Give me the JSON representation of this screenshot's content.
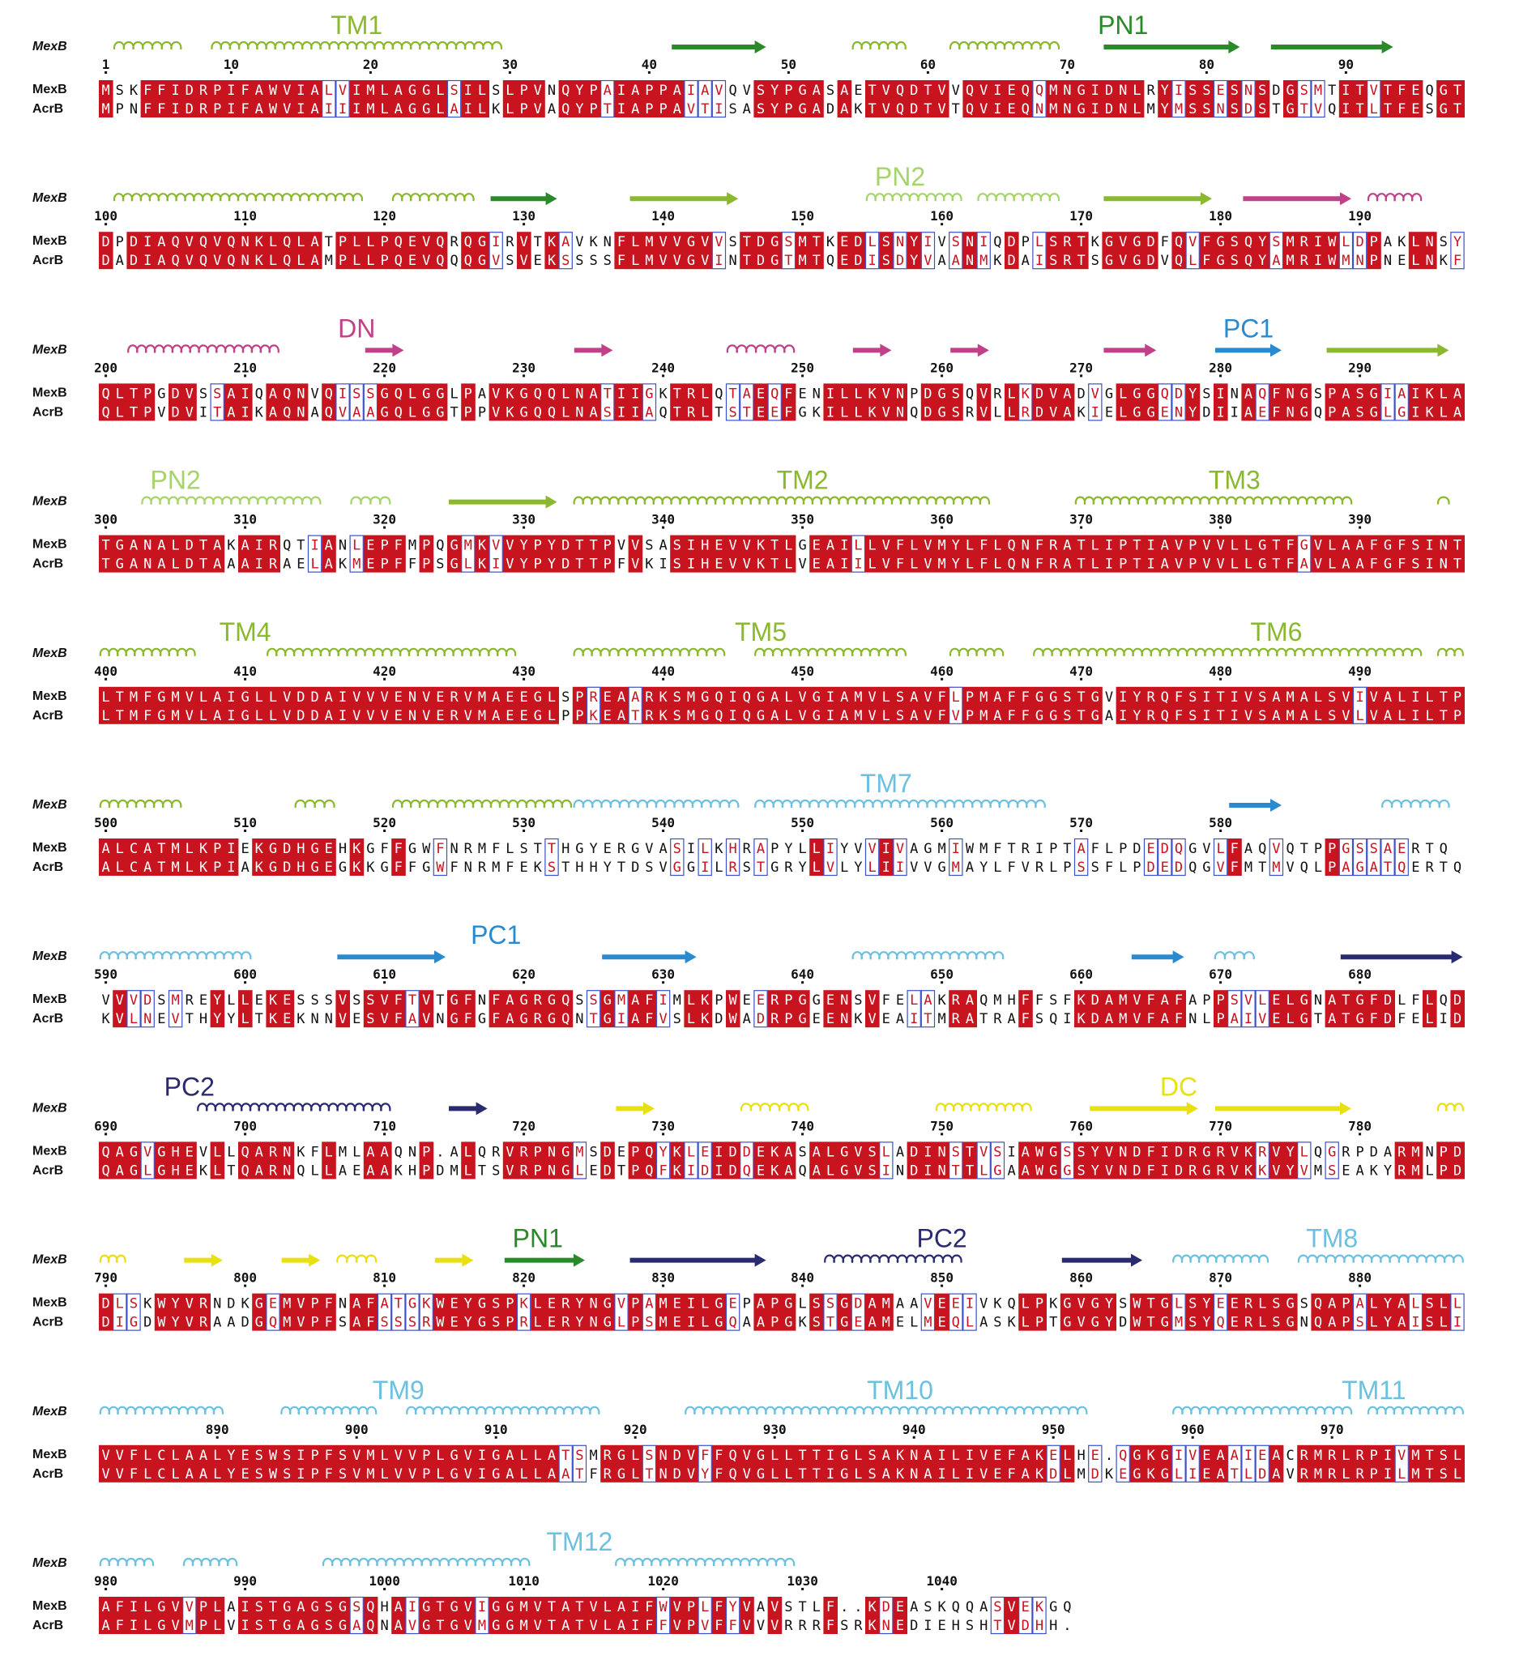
{
  "seq_names": {
    "top": "MexB",
    "bottom": "AcrB"
  },
  "colors": {
    "identical_bg": "#c8141e",
    "identical_fg": "#ffffff",
    "similar_fg": "#c8141e",
    "box": "#3c50c8",
    "text": "#111111",
    "tm_green": "#8ab82e",
    "pn1_green": "#2a8a2a",
    "pn2_light": "#a6d46a",
    "dn_pink": "#c0408a",
    "pc1_blue": "#2a8ad0",
    "tm_lightblue": "#6cc0e0",
    "pc2_navy": "#2a2a70",
    "dc_yellow": "#e8e010"
  },
  "blocks": [
    {
      "start": 1,
      "top": "MSKFFIDRPIFAWVIALVIMLAGGLSILSLPVNQYPAIAPPAIAVQVSYPGASAETVQDTVVQVIEQQMNGIDNLRYISSESNSDGSMTITVTFEQGT",
      "bottom": "MPNFFIDRPIFAWVIAIIIMLAGGLAILKLPVAQYPTIAPPAVTISASYPGADAKTVQDTVTQVIEQNMNGIDNLMYMSSNSDSTGTVQITLTFESGT",
      "ticks": [
        1,
        10,
        20,
        30,
        40,
        50,
        60,
        70,
        80,
        90
      ],
      "labels": [
        {
          "text": "TM1",
          "pos": 19,
          "color": "tm_green"
        },
        {
          "text": "PN1",
          "pos": 74,
          "color": "pn1_green"
        }
      ],
      "ss": [
        {
          "type": "helix",
          "from": 2,
          "to": 6,
          "color": "tm_green"
        },
        {
          "type": "helix",
          "from": 9,
          "to": 29,
          "color": "tm_green"
        },
        {
          "type": "strand",
          "from": 42,
          "to": 48,
          "color": "pn1_green"
        },
        {
          "type": "helix",
          "from": 55,
          "to": 58,
          "color": "tm_green"
        },
        {
          "type": "helix",
          "from": 62,
          "to": 69,
          "color": "tm_green"
        },
        {
          "type": "strand",
          "from": 73,
          "to": 82,
          "color": "pn1_green"
        },
        {
          "type": "strand",
          "from": 85,
          "to": 93,
          "color": "pn1_green"
        }
      ]
    },
    {
      "start": 100,
      "top": "DPDIAQVQVQNKLQLATPLLPQEVQRQGIRVTKAVKNFLMVVGVVSTDGSMTKEDLSNYIVSNIQDPLSRTKGVGDFQVFGSQYSMRIWLDPAKLNSY",
      "bottom": "DADIAQVQVQNKLQLAMPLLPQEVQQQGVSVEKSSSSFLMVVGVINTDGTMTQEDISDYVAANMKDAISRTSGVGDVQLFGSQYAMRIWMNPNELNKF",
      "ticks": [
        100,
        110,
        120,
        130,
        140,
        150,
        160,
        170,
        180,
        190
      ],
      "labels": [
        {
          "text": "PN2",
          "pos": 58,
          "color": "pn2_light"
        }
      ],
      "ss": [
        {
          "type": "helix",
          "from": 2,
          "to": 19,
          "color": "tm_green"
        },
        {
          "type": "helix",
          "from": 22,
          "to": 27,
          "color": "tm_green"
        },
        {
          "type": "strand",
          "from": 29,
          "to": 33,
          "color": "pn1_green"
        },
        {
          "type": "strand",
          "from": 39,
          "to": 46,
          "color": "tm_green"
        },
        {
          "type": "helix",
          "from": 56,
          "to": 62,
          "color": "pn2_light"
        },
        {
          "type": "helix",
          "from": 64,
          "to": 69,
          "color": "pn2_light"
        },
        {
          "type": "strand",
          "from": 73,
          "to": 80,
          "color": "tm_green"
        },
        {
          "type": "strand",
          "from": 83,
          "to": 90,
          "color": "dn_pink"
        },
        {
          "type": "helix",
          "from": 92,
          "to": 95,
          "color": "dn_pink"
        }
      ]
    },
    {
      "start": 200,
      "top": "QLTPGDVSSAIQAQNVQISSGQLGGLPAVKGQQLNATIIGKTRLQTAEQFENILLKVNPDGSQVRLKDVADVGLGGQDYSINAQFNGSPASGIAIKLA",
      "bottom": "QLTPVDVITAIKAQNAQVAAGQLGGTPPVKGQQLNASIIAQTRLTSTEEFGKILLKVNQDGSRVLLRDVAKIELGGENYDIIAEFNGQPASGLGIKLA",
      "ticks": [
        200,
        210,
        220,
        230,
        240,
        250,
        260,
        270,
        280,
        290
      ],
      "labels": [
        {
          "text": "DN",
          "pos": 19,
          "color": "dn_pink"
        },
        {
          "text": "PC1",
          "pos": 83,
          "color": "pc1_blue"
        }
      ],
      "ss": [
        {
          "type": "helix",
          "from": 3,
          "to": 13,
          "color": "dn_pink"
        },
        {
          "type": "strand",
          "from": 20,
          "to": 22,
          "color": "dn_pink"
        },
        {
          "type": "strand",
          "from": 35,
          "to": 37,
          "color": "dn_pink"
        },
        {
          "type": "helix",
          "from": 46,
          "to": 50,
          "color": "dn_pink"
        },
        {
          "type": "strand",
          "from": 55,
          "to": 57,
          "color": "dn_pink"
        },
        {
          "type": "strand",
          "from": 62,
          "to": 64,
          "color": "dn_pink"
        },
        {
          "type": "strand",
          "from": 73,
          "to": 76,
          "color": "dn_pink"
        },
        {
          "type": "strand",
          "from": 81,
          "to": 85,
          "color": "pc1_blue"
        },
        {
          "type": "strand",
          "from": 89,
          "to": 97,
          "color": "tm_green"
        }
      ]
    },
    {
      "start": 300,
      "top": "TGANALDTAKAIRQTIANLEPFMPQGMKVVYPYDTTPVVSASIHEVVKTLGEAILLVFLVMYLFLQNFRATLIPTIAVPVVLLGTFGVLAAFGFSINT",
      "bottom": "TGANALDTAAAIRAELAKMEPFFPSGLKIVYPYDTTPFVKISIHEVVKTLVEAIILVFLVMYLFLQNFRATLIPTIAVPVVLLGTFAVLAAFGFSINT",
      "ticks": [
        300,
        310,
        320,
        330,
        340,
        350,
        360,
        370,
        380,
        390
      ],
      "labels": [
        {
          "text": "PN2",
          "pos": 6,
          "color": "pn2_light"
        },
        {
          "text": "TM2",
          "pos": 51,
          "color": "tm_green"
        },
        {
          "text": "TM3",
          "pos": 82,
          "color": "tm_green"
        }
      ],
      "ss": [
        {
          "type": "helix",
          "from": 4,
          "to": 16,
          "color": "pn2_light"
        },
        {
          "type": "helix",
          "from": 19,
          "to": 21,
          "color": "pn2_light"
        },
        {
          "type": "strand",
          "from": 26,
          "to": 33,
          "color": "tm_green"
        },
        {
          "type": "helix",
          "from": 35,
          "to": 64,
          "color": "tm_green"
        },
        {
          "type": "helix",
          "from": 71,
          "to": 90,
          "color": "tm_green"
        },
        {
          "type": "helix",
          "from": 97,
          "to": 97,
          "color": "tm_green"
        }
      ]
    },
    {
      "start": 400,
      "top": "LTMFGMVLAIGLLVDDAIVVVENVERVMAEEGLSPREAARKSMGQIQGALVGIAMVLSAVFLPMAFFGGSTGVIYRQFSITIVSAMALSVIVALILTP",
      "bottom": "LTMFGMVLAIGLLVDDAIVVVENVERVMAEEGLPPKEATRKSMGQIQGALVGIAMVLSAVFVPMAFFGGSTGAIYRQFSITIVSAMALSVLVALILTP",
      "ticks": [
        400,
        410,
        420,
        430,
        440,
        450,
        460,
        470,
        480,
        490
      ],
      "labels": [
        {
          "text": "TM4",
          "pos": 11,
          "color": "tm_green"
        },
        {
          "text": "TM5",
          "pos": 48,
          "color": "tm_green"
        },
        {
          "text": "TM6",
          "pos": 85,
          "color": "tm_green"
        }
      ],
      "ss": [
        {
          "type": "helix",
          "from": 1,
          "to": 7,
          "color": "tm_green"
        },
        {
          "type": "helix",
          "from": 13,
          "to": 30,
          "color": "tm_green"
        },
        {
          "type": "helix",
          "from": 35,
          "to": 45,
          "color": "tm_green"
        },
        {
          "type": "helix",
          "from": 48,
          "to": 58,
          "color": "tm_green"
        },
        {
          "type": "helix",
          "from": 62,
          "to": 65,
          "color": "tm_green"
        },
        {
          "type": "helix",
          "from": 68,
          "to": 95,
          "color": "tm_green"
        },
        {
          "type": "helix",
          "from": 97,
          "to": 98,
          "color": "tm_green"
        }
      ]
    },
    {
      "start": 500,
      "top": "ALCATMLKPIEKGDHGEHKGFFGWFNRMFLSTTHGYERGVASILKHRAPYLLIYVVIVAGMIWMFTRIPTAFLPDEDQGVLFAQVQTPPGSSAERTQ",
      "bottom": "ALCATMLKPIAKGDHGEGKKGFFGWFNRMFEKSTHHYTDSVGGILRSTGRYLVLYLIIVVGMAYLFVRLPSSFLPDEDQGVFMTMVQLPAGATQERTQ",
      "ticks": [
        500,
        510,
        520,
        530,
        540,
        550,
        560,
        570,
        580
      ],
      "labels": [
        {
          "text": "TM7",
          "pos": 57,
          "color": "tm_lightblue"
        }
      ],
      "ss": [
        {
          "type": "helix",
          "from": 1,
          "to": 6,
          "color": "tm_green"
        },
        {
          "type": "helix",
          "from": 15,
          "to": 17,
          "color": "tm_green"
        },
        {
          "type": "helix",
          "from": 22,
          "to": 34,
          "color": "tm_green"
        },
        {
          "type": "helix",
          "from": 35,
          "to": 46,
          "color": "tm_lightblue"
        },
        {
          "type": "helix",
          "from": 48,
          "to": 68,
          "color": "tm_lightblue"
        },
        {
          "type": "strand",
          "from": 82,
          "to": 85,
          "color": "pc1_blue"
        },
        {
          "type": "helix",
          "from": 93,
          "to": 97,
          "color": "tm_lightblue"
        }
      ]
    },
    {
      "start": 590,
      "top": "VVVDSMREYLLEKESSSVSSVFTVTGFNFAGRGQSSGMAFIMLKPWEERPGGENSVFELAKRAQMHFFSFKDAMVFAFAPPSVLELGNATGFDLFLQD",
      "bottom": "KVLNEVTHYYLTKEKNNVESVFAVNGFGFAGRGQNTGIAFVSLKDWADRPGEENKVEAITMRATRAFSQIKDAMVFAFNLPAIVELGTATGFDFELID",
      "ticks": [
        590,
        600,
        610,
        620,
        630,
        640,
        650,
        660,
        670,
        680
      ],
      "labels": [
        {
          "text": "PC1",
          "pos": 29,
          "color": "pc1_blue"
        }
      ],
      "ss": [
        {
          "type": "helix",
          "from": 1,
          "to": 11,
          "color": "tm_lightblue"
        },
        {
          "type": "strand",
          "from": 18,
          "to": 25,
          "color": "pc1_blue"
        },
        {
          "type": "strand",
          "from": 37,
          "to": 43,
          "color": "pc1_blue"
        },
        {
          "type": "helix",
          "from": 55,
          "to": 65,
          "color": "tm_lightblue"
        },
        {
          "type": "strand",
          "from": 75,
          "to": 78,
          "color": "pc1_blue"
        },
        {
          "type": "helix",
          "from": 81,
          "to": 83,
          "color": "tm_lightblue"
        },
        {
          "type": "strand",
          "from": 90,
          "to": 98,
          "color": "pc2_navy"
        }
      ]
    },
    {
      "start": 690,
      "top": "QAGVGHEVLLQARNKFLMLAAQNP.ALQRVRPNGMSDEPQYKLEIDDEKASALGVSLADINSTVSIAWGSSYVNDFIDRGRVKRVYLQGRPDARMNPD",
      "bottom": "QAGLGHEKLTQARNQLLAEAAKHPDMLTSVRPNGLEDTPQFKIDIDQEKAQALGVSINDINTTLGAAWGGSYVNDFIDRGRVKKVYVMSEAKYRMLPD",
      "ticks": [
        690,
        700,
        710,
        720,
        730,
        740,
        750,
        760,
        770,
        780
      ],
      "labels": [
        {
          "text": "PC2",
          "pos": 7,
          "color": "pc2_navy"
        },
        {
          "text": "DC",
          "pos": 78,
          "color": "dc_yellow"
        }
      ],
      "ss": [
        {
          "type": "helix",
          "from": 8,
          "to": 21,
          "color": "pc2_navy"
        },
        {
          "type": "strand",
          "from": 26,
          "to": 28,
          "color": "pc2_navy"
        },
        {
          "type": "strand",
          "from": 38,
          "to": 40,
          "color": "dc_yellow"
        },
        {
          "type": "helix",
          "from": 47,
          "to": 51,
          "color": "dc_yellow"
        },
        {
          "type": "helix",
          "from": 61,
          "to": 67,
          "color": "dc_yellow"
        },
        {
          "type": "strand",
          "from": 72,
          "to": 79,
          "color": "dc_yellow"
        },
        {
          "type": "strand",
          "from": 81,
          "to": 90,
          "color": "dc_yellow"
        },
        {
          "type": "helix",
          "from": 97,
          "to": 98,
          "color": "dc_yellow"
        }
      ]
    },
    {
      "start": 790,
      "top": "DLSKWYVRNDKGEMVPFNAFATGKWEYGSPKLERYNGVPAMEILGEPAPGLSSGDAMAAVEEIVKQLPKGVGYSWTGLSYEERLSGSQAPALYALSLL",
      "bottom": "DIGDWYVRAADGQMVPFSAFSSSRWEYGSPRLERYNGLPSMEILGQAAPGKSTGEAMELMEQLASKLPTGVGYDWTGMSYQERLSGNQAPSLYAISLI",
      "ticks": [
        790,
        800,
        810,
        820,
        830,
        840,
        850,
        860,
        870,
        880
      ],
      "labels": [
        {
          "text": "PN1",
          "pos": 32,
          "color": "pn1_green"
        },
        {
          "text": "PC2",
          "pos": 61,
          "color": "pc2_navy"
        },
        {
          "text": "TM8",
          "pos": 89,
          "color": "tm_lightblue"
        }
      ],
      "ss": [
        {
          "type": "helix",
          "from": 1,
          "to": 2,
          "color": "dc_yellow"
        },
        {
          "type": "strand",
          "from": 7,
          "to": 9,
          "color": "dc_yellow"
        },
        {
          "type": "strand",
          "from": 14,
          "to": 16,
          "color": "dc_yellow"
        },
        {
          "type": "helix",
          "from": 18,
          "to": 20,
          "color": "dc_yellow"
        },
        {
          "type": "strand",
          "from": 25,
          "to": 27,
          "color": "dc_yellow"
        },
        {
          "type": "strand",
          "from": 30,
          "to": 35,
          "color": "pn1_green"
        },
        {
          "type": "strand",
          "from": 39,
          "to": 48,
          "color": "pc2_navy"
        },
        {
          "type": "helix",
          "from": 53,
          "to": 62,
          "color": "pc2_navy"
        },
        {
          "type": "strand",
          "from": 70,
          "to": 75,
          "color": "pc2_navy"
        },
        {
          "type": "helix",
          "from": 78,
          "to": 84,
          "color": "tm_lightblue"
        },
        {
          "type": "helix",
          "from": 87,
          "to": 98,
          "color": "tm_lightblue"
        }
      ]
    },
    {
      "start": 882,
      "top": "VVFLCLAALYESWSIPFSVMLVVPLGVIGALLATSMRGLSNDVFFQVGLLTTIGLSAKNAILIVEFAKELHE.QGKGIVEAAIEACRMRLRPIVMTSL",
      "bottom": "VVFLCLAALYESWSIPFSVMLVVPLGVIGALLAATFRGLTNDVYFQVGLLTTIGLSAKNAILIVEFAKDLMDKEGKGLIEATLDAVRMRLRPILMTSL",
      "ticks": [
        890,
        900,
        910,
        920,
        930,
        940,
        950,
        960,
        970
      ],
      "labels": [
        {
          "text": "TM9",
          "pos": 22,
          "color": "tm_lightblue"
        },
        {
          "text": "TM10",
          "pos": 58,
          "color": "tm_lightblue"
        },
        {
          "text": "TM11",
          "pos": 92,
          "color": "tm_lightblue"
        }
      ],
      "ss": [
        {
          "type": "helix",
          "from": 1,
          "to": 9,
          "color": "tm_lightblue"
        },
        {
          "type": "helix",
          "from": 14,
          "to": 20,
          "color": "tm_lightblue"
        },
        {
          "type": "helix",
          "from": 23,
          "to": 36,
          "color": "tm_lightblue"
        },
        {
          "type": "helix",
          "from": 43,
          "to": 71,
          "color": "tm_lightblue"
        },
        {
          "type": "helix",
          "from": 78,
          "to": 90,
          "color": "tm_lightblue"
        },
        {
          "type": "helix",
          "from": 92,
          "to": 98,
          "color": "tm_lightblue"
        }
      ]
    },
    {
      "start": 980,
      "top": "AFILGVVPLAISTGAGSGSQHAIGTGVIGGMVTATVLAIFWVPLFYVAVSTLF..KDEASKQQASVEKGQ",
      "bottom": "AFILGVMPLVISTGAGSGAQNAVGTGVMGGMVTATVLAIFFVPVFFVVVRRRFSRKNEDIEHSHTVDHH.",
      "ticks": [
        980,
        990,
        1000,
        1010,
        1020,
        1030,
        1040
      ],
      "labels": [
        {
          "text": "TM12",
          "pos": 35,
          "color": "tm_lightblue"
        }
      ],
      "ss": [
        {
          "type": "helix",
          "from": 1,
          "to": 4,
          "color": "tm_lightblue"
        },
        {
          "type": "helix",
          "from": 7,
          "to": 10,
          "color": "tm_lightblue"
        },
        {
          "type": "helix",
          "from": 17,
          "to": 31,
          "color": "tm_lightblue"
        },
        {
          "type": "helix",
          "from": 38,
          "to": 50,
          "color": "tm_lightblue"
        }
      ]
    }
  ]
}
